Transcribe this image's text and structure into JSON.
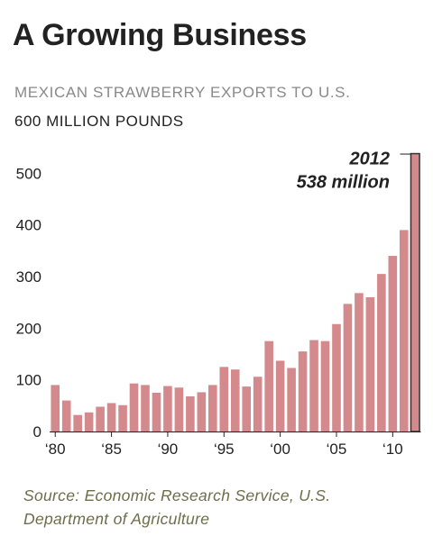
{
  "header": {
    "title": "A Growing Business",
    "subtitle": "MEXICAN STRAWBERRY EXPORTS TO U.S.",
    "unit_label": "600 MILLION POUNDS"
  },
  "source": "Source: Economic Research Service, U.S. Department of Agriculture",
  "colors": {
    "bar": "#d4898c",
    "highlight_bar": "#d4898c",
    "highlight_outline": "#333333"
  },
  "chart_data": {
    "type": "bar",
    "x": [
      1980,
      1981,
      1982,
      1983,
      1984,
      1985,
      1986,
      1987,
      1988,
      1989,
      1990,
      1991,
      1992,
      1993,
      1994,
      1995,
      1996,
      1997,
      1998,
      1999,
      2000,
      2001,
      2002,
      2003,
      2004,
      2005,
      2006,
      2007,
      2008,
      2009,
      2010,
      2011,
      2012
    ],
    "values": [
      90,
      60,
      32,
      37,
      48,
      55,
      51,
      93,
      90,
      75,
      88,
      85,
      68,
      76,
      90,
      125,
      120,
      87,
      106,
      175,
      137,
      123,
      155,
      177,
      175,
      208,
      247,
      268,
      260,
      305,
      340,
      390,
      538
    ],
    "x_tick_labels": [
      {
        "x": 1980,
        "label": "‘80"
      },
      {
        "x": 1985,
        "label": "‘85"
      },
      {
        "x": 1990,
        "label": "‘90"
      },
      {
        "x": 1995,
        "label": "‘95"
      },
      {
        "x": 2000,
        "label": "‘00"
      },
      {
        "x": 2005,
        "label": "‘05"
      },
      {
        "x": 2010,
        "label": "‘10"
      }
    ],
    "y_ticks": [
      0,
      100,
      200,
      300,
      400,
      500
    ],
    "ylim": [
      0,
      600
    ],
    "ylabel": "600 MILLION POUNDS",
    "grid": false,
    "annotation": {
      "x": 2012,
      "line1": "2012",
      "line2": "538 million"
    }
  }
}
